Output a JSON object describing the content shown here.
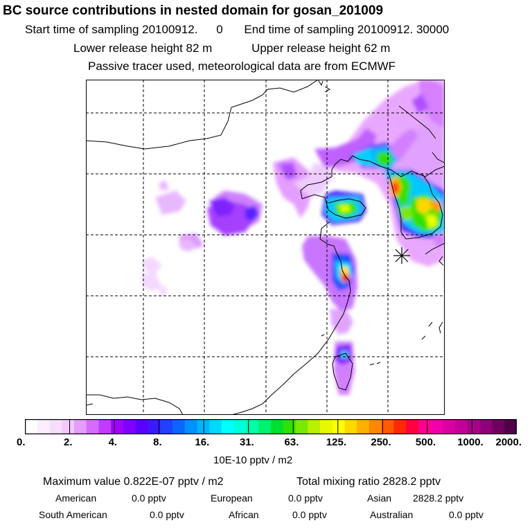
{
  "header": {
    "title": "BC  source contributions in nested domain for gosan_201009",
    "start_label": "Start time of sampling 20100912.",
    "start_value": "0",
    "end_label": "End time of sampling 20100912. 30000",
    "lower_release": "Lower release height   82 m",
    "upper_release": "Upper release height   62 m",
    "note": "Passive tracer used, meteorological data are from ECMWF"
  },
  "map": {
    "marker": "receptor-star",
    "colors": {
      "magenta_light": "#f4d8ff",
      "purple": "#a100ff",
      "blue": "#1a3cff",
      "cyan": "#00e8ff",
      "green": "#2fe000",
      "yellow": "#e8ff00",
      "orange": "#ff9a00",
      "red": "#ff1a10"
    }
  },
  "colorbar": {
    "ticks": [
      "0.",
      "2.",
      "4.",
      "8.",
      "16.",
      "31.",
      "63.",
      "125.",
      "250.",
      "500.",
      "1000.",
      "2000."
    ],
    "colors": [
      "#ffffff",
      "#fbeeff",
      "#f7ddff",
      "#f2c8ff",
      "#e79cff",
      "#d56cff",
      "#c23cff",
      "#a400ff",
      "#7f00ff",
      "#5a00ff",
      "#3a1aff",
      "#2240ff",
      "#0a66ff",
      "#0090ff",
      "#00b4ff",
      "#00d8ff",
      "#00ffff",
      "#00ffd8",
      "#00ffa8",
      "#00f070",
      "#00e030",
      "#30e000",
      "#7ae800",
      "#b8f000",
      "#e8f800",
      "#ffff00",
      "#ffd800",
      "#ffb000",
      "#ff8800",
      "#ff5a00",
      "#ff2800",
      "#ff0040",
      "#ff0090",
      "#f000a8",
      "#d800a0",
      "#c00098",
      "#a80088",
      "#900078",
      "#700060",
      "#500048"
    ],
    "units": "10E-10 pptv / m2"
  },
  "stats": {
    "maximum_value": "Maximum value  0.822E-07 pptv / m2",
    "total_mixing_ratio": "Total mixing ratio     2828.2 pptv",
    "rows": [
      [
        {
          "label": "American",
          "value": "0.0 pptv"
        },
        {
          "label": "European",
          "value": "0.0 pptv"
        },
        {
          "label": "Asian",
          "value": "2828.2 pptv"
        }
      ],
      [
        {
          "label": "South American",
          "value": "0.0 pptv"
        },
        {
          "label": "African",
          "value": "0.0 pptv"
        },
        {
          "label": "Australian",
          "value": "0.0 pptv"
        }
      ]
    ]
  }
}
